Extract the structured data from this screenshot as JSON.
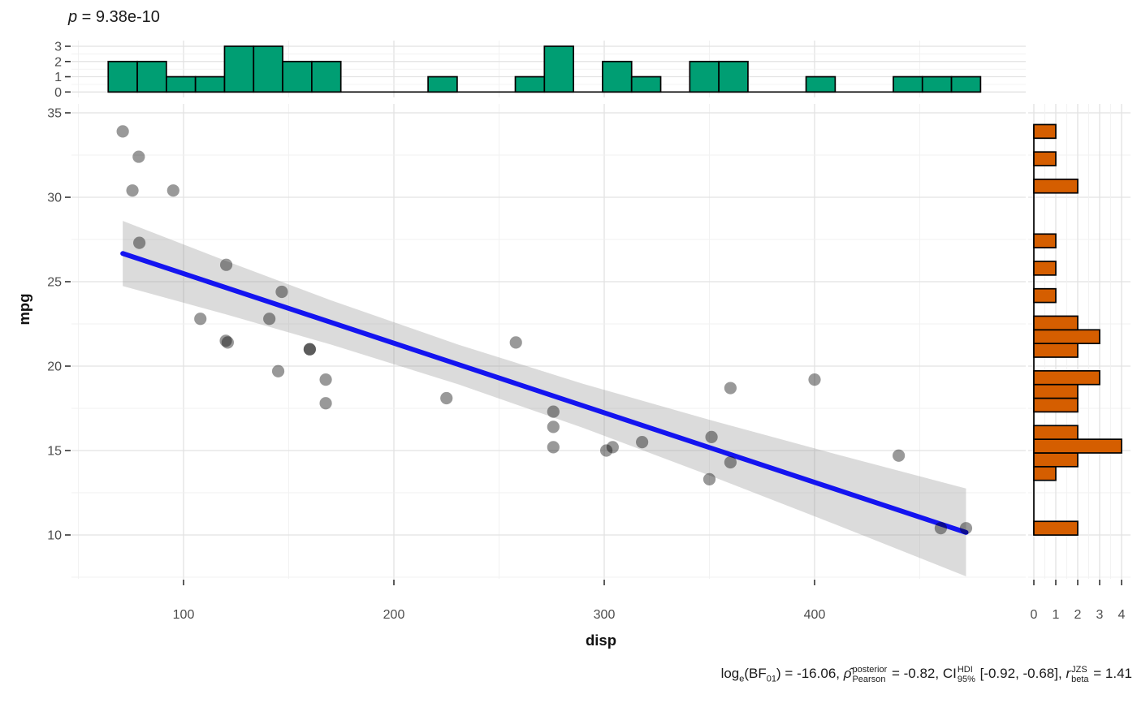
{
  "title": {
    "lhs": "p",
    "rhs": " = 9.38e-10"
  },
  "axes": {
    "x": {
      "label": "disp",
      "ticks": [
        "100",
        "200",
        "300",
        "400"
      ]
    },
    "y": {
      "label": "mpg",
      "ticks": [
        "35",
        "30",
        "25",
        "20",
        "15",
        "10"
      ]
    },
    "top_hist_y": {
      "ticks": [
        "3",
        "2",
        "1",
        "0"
      ]
    },
    "right_hist_x": {
      "ticks": [
        "0",
        "1",
        "2",
        "3",
        "4"
      ]
    }
  },
  "caption": {
    "log": "log",
    "log_sub": "e",
    "bf": "(BF",
    "bf_sub": "01",
    "bf_val": ") = -16.06, ",
    "rho": "ρ̂",
    "rho_sup": "posterior",
    "rho_sub": "Pearson",
    "rho_val": " = -0.82, CI",
    "ci_sup": "HDI",
    "ci_sub": "95%",
    "ci_val": " [-0.92, -0.68], ",
    "r": "r",
    "r_sup": "JZS",
    "r_sub": "beta",
    "r_val": " = 1.41"
  },
  "colors": {
    "hist_x_fill": "#009E73",
    "hist_y_fill": "#D55E00",
    "bar_stroke": "#000000",
    "line_blue": "#1414F0",
    "band_gray": "#999999",
    "point": "#000000",
    "grid_major": "#E2E2E2",
    "grid_minor": "#F1F1F1",
    "tick": "#333333",
    "tick_label": "#4D4D4D",
    "axis_title": "#111111"
  },
  "chart_data": [
    {
      "type": "scatter",
      "title": "p = 9.38e-10",
      "xlabel": "disp",
      "ylabel": "mpg",
      "x_ticks": [
        100,
        200,
        300,
        400
      ],
      "y_ticks": [
        35,
        30,
        25,
        20,
        15,
        10
      ],
      "xlim": [
        51,
        492
      ],
      "ylim": [
        7,
        35.3
      ],
      "grid": true,
      "point_alpha": 0.4,
      "points": [
        [
          160,
          21.0
        ],
        [
          160,
          21.0
        ],
        [
          108,
          22.8
        ],
        [
          258,
          21.4
        ],
        [
          360,
          18.7
        ],
        [
          225,
          18.1
        ],
        [
          360,
          14.3
        ],
        [
          146.7,
          24.4
        ],
        [
          140.8,
          22.8
        ],
        [
          167.6,
          19.2
        ],
        [
          167.6,
          17.8
        ],
        [
          275.8,
          16.4
        ],
        [
          275.8,
          17.3
        ],
        [
          275.8,
          15.2
        ],
        [
          472,
          10.4
        ],
        [
          460,
          10.4
        ],
        [
          440,
          14.7
        ],
        [
          78.7,
          32.4
        ],
        [
          75.7,
          30.4
        ],
        [
          71.1,
          33.9
        ],
        [
          120.1,
          21.5
        ],
        [
          318,
          15.5
        ],
        [
          304,
          15.2
        ],
        [
          350,
          13.3
        ],
        [
          400,
          19.2
        ],
        [
          79,
          27.3
        ],
        [
          120.3,
          26.0
        ],
        [
          95.1,
          30.4
        ],
        [
          351,
          15.8
        ],
        [
          145,
          19.7
        ],
        [
          301,
          15.0
        ],
        [
          121,
          21.4
        ]
      ],
      "regression_line": {
        "x": [
          71.1,
          472
        ],
        "y": [
          26.67,
          10.15
        ]
      },
      "ci_band": {
        "x": [
          71.1,
          120,
          170,
          230.7,
          290,
          350,
          410,
          472
        ],
        "upper": [
          28.6,
          26.24,
          23.9,
          21.27,
          18.95,
          16.82,
          14.79,
          12.75
        ],
        "lower": [
          24.74,
          23.07,
          21.28,
          18.92,
          16.34,
          13.53,
          10.62,
          7.55
        ]
      }
    },
    {
      "type": "bar",
      "role": "x-marginal-histogram",
      "variable": "disp",
      "orientation": "vertical",
      "bin_start": 64.19,
      "bin_width": 13.824,
      "counts": [
        2,
        2,
        1,
        1,
        3,
        3,
        2,
        2,
        0,
        0,
        0,
        1,
        0,
        0,
        1,
        3,
        0,
        2,
        1,
        0,
        2,
        2,
        0,
        0,
        1,
        0,
        0,
        1,
        1,
        1
      ],
      "y_ticks": [
        0,
        1,
        2,
        3
      ]
    },
    {
      "type": "bar",
      "role": "y-marginal-histogram",
      "variable": "mpg",
      "orientation": "horizontal",
      "bin_start": 9.995,
      "bin_width": 0.81034,
      "counts": [
        2,
        0,
        0,
        0,
        1,
        2,
        4,
        2,
        0,
        2,
        2,
        3,
        0,
        2,
        3,
        2,
        0,
        1,
        0,
        1,
        0,
        1,
        0,
        0,
        0,
        2,
        0,
        1,
        0,
        1
      ],
      "x_ticks": [
        0,
        1,
        2,
        3,
        4
      ]
    }
  ]
}
